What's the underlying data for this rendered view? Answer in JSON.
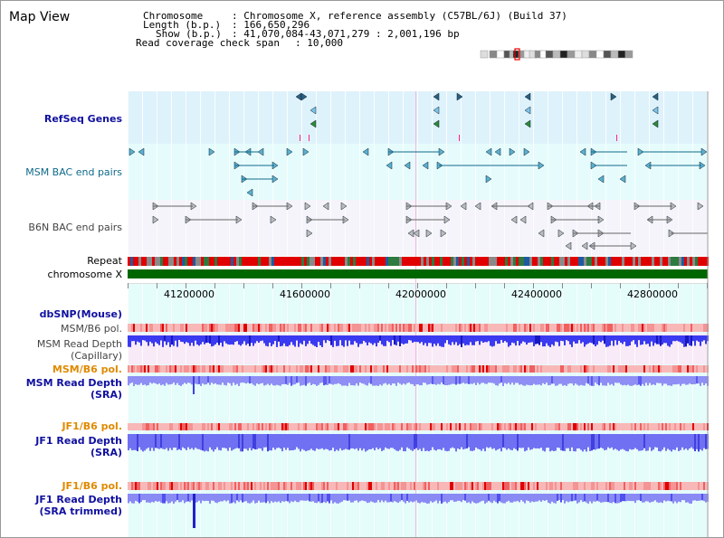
{
  "title": "Map View",
  "info": {
    "chromosome_label": "Chromosome",
    "chromosome_value": ": Chromosome X, reference assembly (C57BL/6J) (Build 37)",
    "length_label": "Length (b.p.)",
    "length_value": ": 166,650,296",
    "show_label": "Show (b.p.)",
    "show_value": ": 41,070,084-43,071,279 : 2,001,196 bp",
    "coverage_label": "Read coverage check span",
    "coverage_value": ": 10,000"
  },
  "tracks": {
    "refseq": "RefSeq Genes",
    "msm_bac": "MSM BAC end pairs",
    "b6n_bac": "B6N BAC end pairs",
    "repeat": "Repeat",
    "chromosome": "chromosome X",
    "dbsnp": "dbSNP(Mouse)",
    "msm_b6_pol_1": "MSM/B6 pol.",
    "msm_depth_cap_1": "MSM Read Depth",
    "msm_depth_cap_2": "(Capillary)",
    "msm_b6_pol_2": "MSM/B6 pol.",
    "msm_depth_sra_1": "MSM Read Depth",
    "msm_depth_sra_2": "(SRA)",
    "jf1_b6_pol_1": "JF1/B6 pol.",
    "jf1_depth_sra_1": "JF1 Read Depth",
    "jf1_depth_sra_2": "(SRA)",
    "jf1_b6_pol_2": "JF1/B6 pol.",
    "jf1_depth_trim_1": "JF1 Read Depth",
    "jf1_depth_trim_2": "(SRA trimmed)"
  },
  "axis": {
    "ticks": [
      "41200000",
      "41600000",
      "42000000",
      "42400000",
      "42800000"
    ]
  },
  "colors": {
    "refseq_bg": "#def2fb",
    "msm_bg": "#e6fcfc",
    "b6n_bg": "#f4f4fa",
    "depth_bg": "#e4fcfa",
    "capillary_bg": "#f8eaf6",
    "chromosome": "#006600",
    "depth_bar": "#6a6af4",
    "teal": "#106a8a"
  }
}
